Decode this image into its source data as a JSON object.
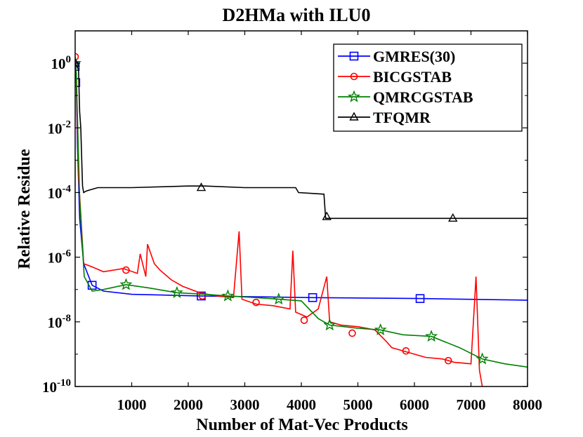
{
  "chart_data": {
    "type": "line",
    "title": "D2HMa with ILU0",
    "xlabel": "Number of Mat-Vec Products",
    "ylabel": "Relative Residue",
    "xlim": [
      0,
      8000
    ],
    "ylim_log10": [
      -10,
      1
    ],
    "y_scale": "log",
    "x_ticks": [
      1000,
      2000,
      3000,
      4000,
      5000,
      6000,
      7000,
      8000
    ],
    "x_tick_labels": [
      "1000",
      "2000",
      "3000",
      "4000",
      "5000",
      "6000",
      "7000",
      "8000"
    ],
    "y_ticks_exp": [
      0,
      -2,
      -4,
      -6,
      -8,
      -10
    ],
    "y_tick_base": "10",
    "legend_position": "top-right",
    "series": [
      {
        "name": "GMRES(30)",
        "color": "#0000ff",
        "marker": "square",
        "points": [
          [
            0,
            0
          ],
          [
            10,
            -0.1
          ],
          [
            20,
            -0.6
          ],
          [
            40,
            -2.5
          ],
          [
            80,
            -4.8
          ],
          [
            150,
            -6.2
          ],
          [
            300,
            -6.87
          ],
          [
            500,
            -7.05
          ],
          [
            1000,
            -7.15
          ],
          [
            2200,
            -7.2
          ],
          [
            4200,
            -7.25
          ],
          [
            6100,
            -7.28
          ],
          [
            8000,
            -7.33
          ]
        ],
        "markers": [
          [
            0,
            -0.1
          ],
          [
            10,
            -0.6
          ],
          [
            300,
            -6.87
          ],
          [
            2230,
            -7.2
          ],
          [
            4200,
            -7.25
          ],
          [
            6100,
            -7.28
          ]
        ]
      },
      {
        "name": "BICGSTAB",
        "color": "#ff0000",
        "marker": "circle",
        "points": [
          [
            0,
            0.2
          ],
          [
            20,
            -0.5
          ],
          [
            60,
            -3.5
          ],
          [
            150,
            -6.2
          ],
          [
            300,
            -6.3
          ],
          [
            500,
            -6.45
          ],
          [
            850,
            -6.35
          ],
          [
            1100,
            -6.5
          ],
          [
            1150,
            -5.9
          ],
          [
            1250,
            -6.6
          ],
          [
            1280,
            -5.6
          ],
          [
            1400,
            -6.2
          ],
          [
            1500,
            -6.4
          ],
          [
            1700,
            -6.7
          ],
          [
            1900,
            -6.9
          ],
          [
            2200,
            -7.1
          ],
          [
            2500,
            -7.2
          ],
          [
            2800,
            -7.25
          ],
          [
            2900,
            -5.2
          ],
          [
            2950,
            -7.3
          ],
          [
            3200,
            -7.45
          ],
          [
            3500,
            -7.5
          ],
          [
            3800,
            -7.6
          ],
          [
            3850,
            -5.8
          ],
          [
            3900,
            -7.7
          ],
          [
            4100,
            -7.85
          ],
          [
            4300,
            -7.6
          ],
          [
            4450,
            -6.6
          ],
          [
            4500,
            -8.0
          ],
          [
            4700,
            -8.1
          ],
          [
            5000,
            -8.15
          ],
          [
            5300,
            -8.25
          ],
          [
            5500,
            -8.6
          ],
          [
            5600,
            -8.8
          ],
          [
            5900,
            -8.95
          ],
          [
            6200,
            -9.1
          ],
          [
            6500,
            -9.15
          ],
          [
            6700,
            -9.25
          ],
          [
            7000,
            -9.3
          ],
          [
            7090,
            -6.6
          ],
          [
            7150,
            -9.5
          ],
          [
            7200,
            -10.0
          ],
          [
            7230,
            -10.2
          ]
        ],
        "markers": [
          [
            0,
            0.2
          ],
          [
            900,
            -6.4
          ],
          [
            2250,
            -7.2
          ],
          [
            3200,
            -7.4
          ],
          [
            4050,
            -7.95
          ],
          [
            4900,
            -8.35
          ],
          [
            5850,
            -8.9
          ],
          [
            6600,
            -9.2
          ]
        ]
      },
      {
        "name": "QMRCGSTAB",
        "color": "#008000",
        "marker": "star",
        "points": [
          [
            0,
            0
          ],
          [
            20,
            -0.3
          ],
          [
            80,
            -4.2
          ],
          [
            160,
            -6.6
          ],
          [
            300,
            -7.05
          ],
          [
            500,
            -7.0
          ],
          [
            900,
            -6.85
          ],
          [
            1300,
            -6.95
          ],
          [
            1800,
            -7.1
          ],
          [
            2300,
            -7.15
          ],
          [
            2700,
            -7.2
          ],
          [
            3200,
            -7.25
          ],
          [
            3600,
            -7.3
          ],
          [
            4000,
            -7.35
          ],
          [
            4300,
            -7.9
          ],
          [
            4500,
            -8.1
          ],
          [
            5000,
            -8.2
          ],
          [
            5400,
            -8.25
          ],
          [
            5800,
            -8.4
          ],
          [
            6300,
            -8.45
          ],
          [
            6800,
            -8.8
          ],
          [
            7200,
            -9.15
          ],
          [
            7600,
            -9.3
          ],
          [
            8000,
            -9.4
          ]
        ],
        "markers": [
          [
            0,
            0
          ],
          [
            900,
            -6.85
          ],
          [
            1800,
            -7.1
          ],
          [
            2700,
            -7.2
          ],
          [
            3600,
            -7.3
          ],
          [
            4500,
            -8.1
          ],
          [
            5400,
            -8.25
          ],
          [
            6300,
            -8.45
          ],
          [
            7200,
            -9.15
          ]
        ]
      },
      {
        "name": "TFQMR",
        "color": "#000000",
        "marker": "triangle",
        "points": [
          [
            0,
            0
          ],
          [
            60,
            -0.2
          ],
          [
            80,
            -1.5
          ],
          [
            100,
            -2.0
          ],
          [
            130,
            -3.8
          ],
          [
            150,
            -4.0
          ],
          [
            200,
            -3.95
          ],
          [
            400,
            -3.85
          ],
          [
            1000,
            -3.85
          ],
          [
            2000,
            -3.8
          ],
          [
            2300,
            -3.8
          ],
          [
            3000,
            -3.85
          ],
          [
            3900,
            -3.85
          ],
          [
            3950,
            -4.0
          ],
          [
            4400,
            -4.05
          ],
          [
            4430,
            -4.8
          ],
          [
            5000,
            -4.8
          ],
          [
            8000,
            -4.8
          ]
        ],
        "markers": [
          [
            0,
            0
          ],
          [
            2230,
            -3.85
          ],
          [
            4450,
            -4.75
          ],
          [
            6680,
            -4.8
          ]
        ]
      }
    ]
  }
}
